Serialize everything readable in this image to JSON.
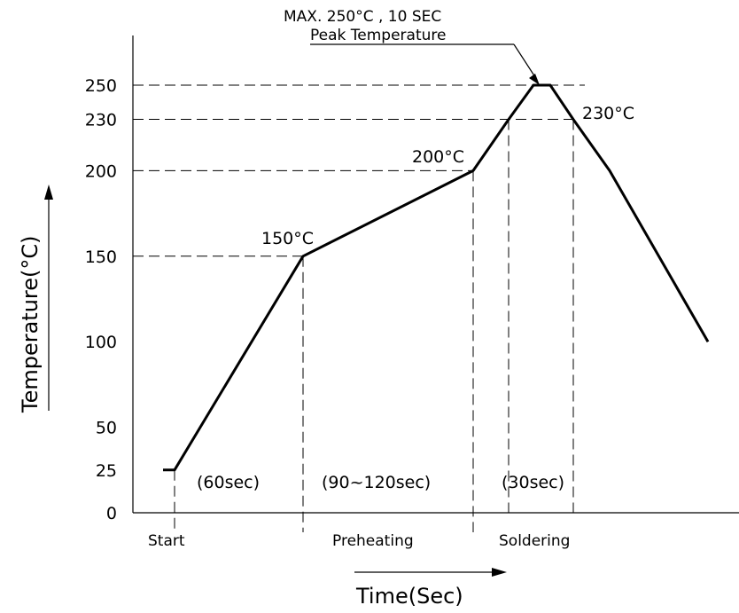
{
  "chart_data": {
    "type": "line",
    "title": "",
    "xlabel": "Time(Sec)",
    "ylabel": "Temperature(°C)",
    "y_ticks": [
      "0",
      "25",
      "50",
      "100",
      "150",
      "200",
      "230",
      "250"
    ],
    "ylim": [
      0,
      250
    ],
    "series": [
      {
        "values": [
          {
            "t": 0,
            "temp": 25
          },
          {
            "t": 0.1,
            "temp": 25
          },
          {
            "t": 1,
            "temp": 150
          },
          {
            "t": 2,
            "temp": 200
          },
          {
            "t": 2.2,
            "temp": 230
          },
          {
            "t": 2.4,
            "temp": 250
          },
          {
            "t": 2.5,
            "temp": 250
          },
          {
            "t": 2.6,
            "temp": 230
          },
          {
            "t": 2.9,
            "temp": 200
          },
          {
            "t": 3.4,
            "temp": 100
          }
        ]
      }
    ],
    "point_labels": [
      {
        "text": "150°C",
        "temp": 150
      },
      {
        "text": "200°C",
        "temp": 200
      },
      {
        "text": "230°C",
        "temp": 230
      }
    ],
    "peak_annotation": {
      "line1": "MAX. 250°C , 10 SEC",
      "line2": "Peak Temperature"
    },
    "durations": [
      {
        "text": "(60sec)"
      },
      {
        "text": "(90~120sec)"
      },
      {
        "text": "(30sec)"
      }
    ],
    "phases": [
      {
        "text": "Start"
      },
      {
        "text": "Preheating"
      },
      {
        "text": "Soldering"
      }
    ],
    "grid": false
  }
}
